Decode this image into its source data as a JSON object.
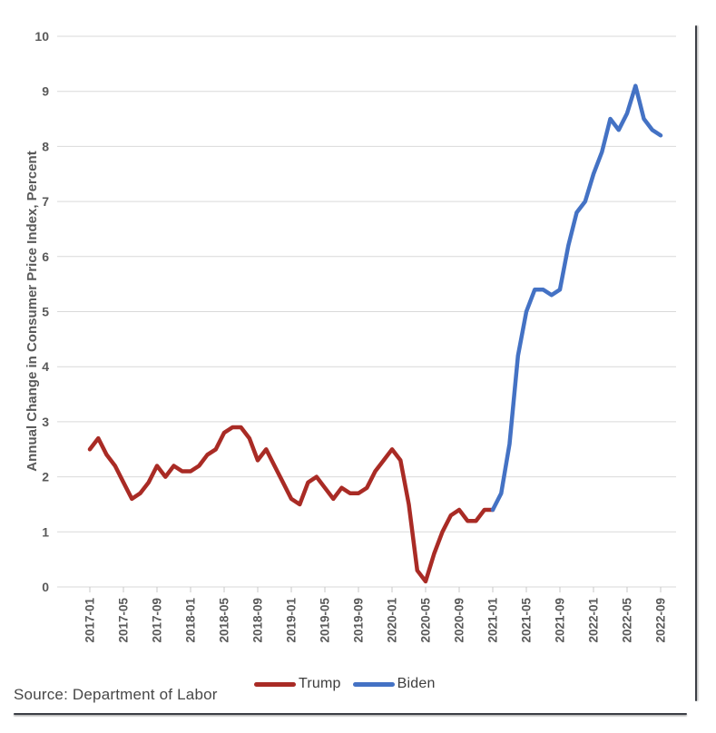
{
  "chart_data": {
    "type": "line",
    "title": "",
    "ylabel": "Annual Change in Consumer Price Index, Percent",
    "xlabel": "",
    "ylim": [
      0,
      10
    ],
    "y_ticks": [
      0,
      1,
      2,
      3,
      4,
      5,
      6,
      7,
      8,
      9,
      10
    ],
    "grid": true,
    "legend_position": "bottom",
    "source": "Source: Department of Labor",
    "x_tick_labels": [
      "2017-01",
      "2017-05",
      "2017-09",
      "2018-01",
      "2018-05",
      "2018-09",
      "2019-01",
      "2019-05",
      "2019-09",
      "2020-01",
      "2020-05",
      "2020-09",
      "2021-01",
      "2021-05",
      "2021-09",
      "2022-01",
      "2022-05",
      "2022-09"
    ],
    "series": [
      {
        "name": "Trump",
        "color": "#a92b25",
        "x": [
          "2017-01",
          "2017-02",
          "2017-03",
          "2017-04",
          "2017-05",
          "2017-06",
          "2017-07",
          "2017-08",
          "2017-09",
          "2017-10",
          "2017-11",
          "2017-12",
          "2018-01",
          "2018-02",
          "2018-03",
          "2018-04",
          "2018-05",
          "2018-06",
          "2018-07",
          "2018-08",
          "2018-09",
          "2018-10",
          "2018-11",
          "2018-12",
          "2019-01",
          "2019-02",
          "2019-03",
          "2019-04",
          "2019-05",
          "2019-06",
          "2019-07",
          "2019-08",
          "2019-09",
          "2019-10",
          "2019-11",
          "2019-12",
          "2020-01",
          "2020-02",
          "2020-03",
          "2020-04",
          "2020-05",
          "2020-06",
          "2020-07",
          "2020-08",
          "2020-09",
          "2020-10",
          "2020-11",
          "2020-12",
          "2021-01"
        ],
        "values": [
          2.5,
          2.7,
          2.4,
          2.2,
          1.9,
          1.6,
          1.7,
          1.9,
          2.2,
          2.0,
          2.2,
          2.1,
          2.1,
          2.2,
          2.4,
          2.5,
          2.8,
          2.9,
          2.9,
          2.7,
          2.3,
          2.5,
          2.2,
          1.9,
          1.6,
          1.5,
          1.9,
          2.0,
          1.8,
          1.6,
          1.8,
          1.7,
          1.7,
          1.8,
          2.1,
          2.3,
          2.5,
          2.3,
          1.5,
          0.3,
          0.1,
          0.6,
          1.0,
          1.3,
          1.4,
          1.2,
          1.2,
          1.4,
          1.4
        ]
      },
      {
        "name": "Biden",
        "color": "#4472c4",
        "x": [
          "2021-01",
          "2021-02",
          "2021-03",
          "2021-04",
          "2021-05",
          "2021-06",
          "2021-07",
          "2021-08",
          "2021-09",
          "2021-10",
          "2021-11",
          "2021-12",
          "2022-01",
          "2022-02",
          "2022-03",
          "2022-04",
          "2022-05",
          "2022-06",
          "2022-07",
          "2022-08",
          "2022-09"
        ],
        "values": [
          1.4,
          1.7,
          2.6,
          4.2,
          5.0,
          5.4,
          5.4,
          5.3,
          5.4,
          6.2,
          6.8,
          7.0,
          7.5,
          7.9,
          8.5,
          8.3,
          8.6,
          9.1,
          8.5,
          8.3,
          8.2
        ]
      }
    ]
  }
}
